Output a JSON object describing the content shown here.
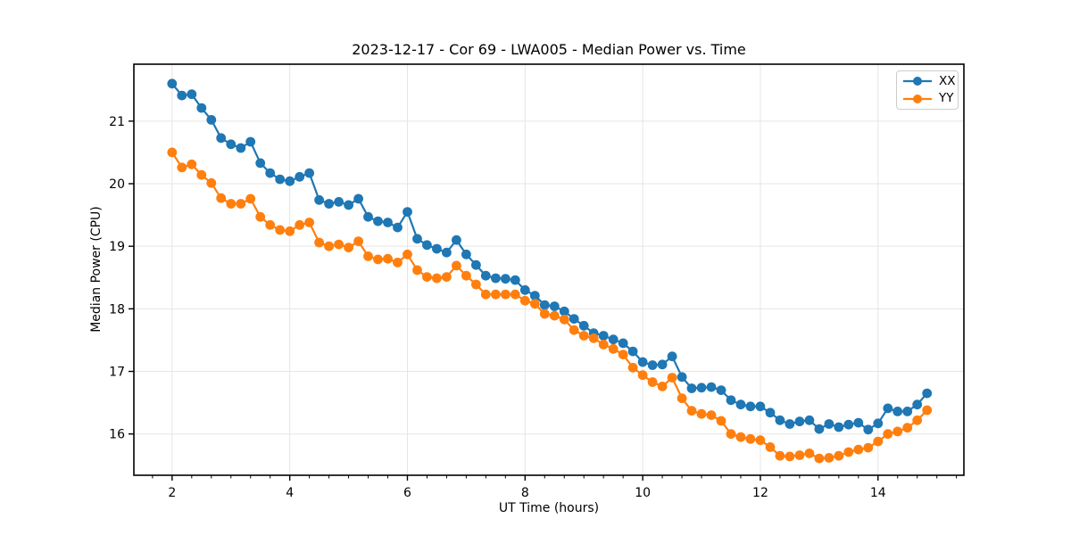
{
  "figure": {
    "background": "#ffffff",
    "text_color": "#000000",
    "spine_color": "#000000"
  },
  "chart_data": {
    "type": "line",
    "title": "2023-12-17 - Cor 69 - LWA005 - Median Power vs. Time",
    "xlabel": "UT Time (hours)",
    "ylabel": "Median Power (CPU)",
    "xlim": [
      1.35,
      15.46
    ],
    "ylim": [
      15.34,
      21.91
    ],
    "x_major_ticks": [
      2,
      4,
      6,
      8,
      10,
      12,
      14
    ],
    "x_minor_tick_step": 0.33333,
    "y_major_ticks": [
      16,
      17,
      18,
      19,
      20,
      21
    ],
    "grid": true,
    "grid_color": "#e5e5e5",
    "legend_position": "upper right",
    "x": [
      2.0,
      2.167,
      2.333,
      2.5,
      2.667,
      2.833,
      3.0,
      3.167,
      3.333,
      3.5,
      3.667,
      3.833,
      4.0,
      4.167,
      4.333,
      4.5,
      4.667,
      4.833,
      5.0,
      5.167,
      5.333,
      5.5,
      5.667,
      5.833,
      6.0,
      6.167,
      6.333,
      6.5,
      6.667,
      6.833,
      7.0,
      7.167,
      7.333,
      7.5,
      7.667,
      7.833,
      8.0,
      8.167,
      8.333,
      8.5,
      8.667,
      8.833,
      9.0,
      9.167,
      9.333,
      9.5,
      9.667,
      9.833,
      10.0,
      10.167,
      10.333,
      10.5,
      10.667,
      10.833,
      11.0,
      11.167,
      11.333,
      11.5,
      11.667,
      11.833,
      12.0,
      12.167,
      12.333,
      12.5,
      12.667,
      12.833,
      13.0,
      13.167,
      13.333,
      13.5,
      13.667,
      13.833,
      14.0,
      14.167,
      14.333,
      14.5,
      14.667,
      14.833
    ],
    "series": [
      {
        "name": "XX",
        "color": "#1f77b4",
        "values": [
          21.6,
          21.41,
          21.43,
          21.21,
          21.02,
          20.73,
          20.63,
          20.57,
          20.67,
          20.33,
          20.17,
          20.07,
          20.04,
          20.11,
          20.17,
          19.74,
          19.68,
          19.71,
          19.66,
          19.76,
          19.47,
          19.4,
          19.38,
          19.3,
          19.55,
          19.12,
          19.02,
          18.96,
          18.9,
          19.1,
          18.87,
          18.7,
          18.53,
          18.49,
          18.48,
          18.46,
          18.3,
          18.21,
          18.06,
          18.04,
          17.96,
          17.84,
          17.73,
          17.61,
          17.57,
          17.51,
          17.45,
          17.32,
          17.15,
          17.1,
          17.11,
          17.24,
          16.91,
          16.73,
          16.74,
          16.75,
          16.7,
          16.54,
          16.47,
          16.44,
          16.44,
          16.34,
          16.22,
          16.16,
          16.2,
          16.22,
          16.08,
          16.16,
          16.11,
          16.15,
          16.18,
          16.07,
          16.17,
          16.41,
          16.36,
          16.36,
          16.47,
          16.65
        ]
      },
      {
        "name": "YY",
        "color": "#ff7f0e",
        "values": [
          20.5,
          20.26,
          20.31,
          20.14,
          20.01,
          19.77,
          19.68,
          19.68,
          19.76,
          19.47,
          19.34,
          19.26,
          19.24,
          19.34,
          19.38,
          19.06,
          19.0,
          19.03,
          18.98,
          19.08,
          18.84,
          18.79,
          18.8,
          18.74,
          18.87,
          18.62,
          18.51,
          18.49,
          18.51,
          18.69,
          18.53,
          18.39,
          18.23,
          18.23,
          18.23,
          18.23,
          18.13,
          18.08,
          17.92,
          17.89,
          17.83,
          17.66,
          17.57,
          17.53,
          17.43,
          17.36,
          17.27,
          17.06,
          16.94,
          16.83,
          16.76,
          16.9,
          16.57,
          16.37,
          16.32,
          16.3,
          16.21,
          16.0,
          15.95,
          15.92,
          15.9,
          15.79,
          15.65,
          15.64,
          15.66,
          15.69,
          15.61,
          15.62,
          15.65,
          15.71,
          15.75,
          15.78,
          15.88,
          16.0,
          16.04,
          16.1,
          16.22,
          16.38
        ]
      }
    ]
  }
}
